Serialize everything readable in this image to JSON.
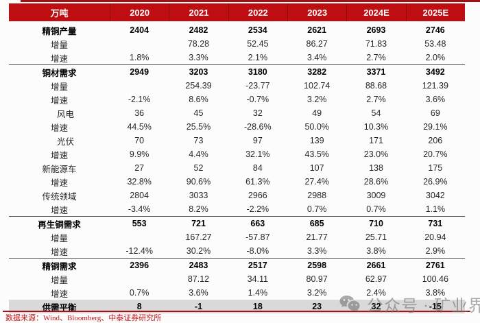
{
  "chart_data": {
    "type": "table",
    "title": "",
    "unit_label": "万吨",
    "columns": [
      "2020",
      "2021",
      "2022",
      "2023",
      "2024E",
      "2025E"
    ],
    "rows": [
      {
        "label": "精铜产量",
        "bold": true,
        "indent": false,
        "sep_below": false,
        "highlight": false,
        "values": [
          "2404",
          "2482",
          "2534",
          "2621",
          "2693",
          "2746"
        ]
      },
      {
        "label": "增量",
        "bold": false,
        "indent": false,
        "sep_below": false,
        "highlight": false,
        "values": [
          "",
          "78.28",
          "52.45",
          "86.27",
          "71.83",
          "53.48"
        ]
      },
      {
        "label": "增速",
        "bold": false,
        "indent": false,
        "sep_below": true,
        "highlight": false,
        "values": [
          "1.8%",
          "3.3%",
          "2.1%",
          "3.4%",
          "2.7%",
          "2.0%"
        ]
      },
      {
        "label": "铜材需求",
        "bold": true,
        "indent": false,
        "sep_below": false,
        "highlight": false,
        "values": [
          "2949",
          "3203",
          "3180",
          "3282",
          "3371",
          "3492"
        ]
      },
      {
        "label": "增量",
        "bold": false,
        "indent": false,
        "sep_below": false,
        "highlight": false,
        "values": [
          "",
          "254.39",
          "-23.77",
          "102.74",
          "88.68",
          "121.39"
        ]
      },
      {
        "label": "增速",
        "bold": false,
        "indent": false,
        "sep_below": false,
        "highlight": false,
        "values": [
          "-2.1%",
          "8.6%",
          "-0.7%",
          "3.2%",
          "2.7%",
          "3.6%"
        ]
      },
      {
        "label": "风电",
        "bold": false,
        "indent": true,
        "sep_below": false,
        "highlight": false,
        "values": [
          "36",
          "45",
          "32",
          "49",
          "54",
          "69"
        ]
      },
      {
        "label": "增速",
        "bold": false,
        "indent": false,
        "sep_below": false,
        "highlight": false,
        "values": [
          "44.5%",
          "25.5%",
          "-28.6%",
          "50.0%",
          "10.3%",
          "29.1%"
        ]
      },
      {
        "label": "光伏",
        "bold": false,
        "indent": true,
        "sep_below": false,
        "highlight": false,
        "values": [
          "70",
          "73",
          "97",
          "139",
          "171",
          "206"
        ]
      },
      {
        "label": "增速",
        "bold": false,
        "indent": false,
        "sep_below": false,
        "highlight": false,
        "values": [
          "9.9%",
          "4.4%",
          "32.1%",
          "43.5%",
          "23.0%",
          "20.7%"
        ]
      },
      {
        "label": "新能源车",
        "bold": false,
        "indent": false,
        "sep_below": false,
        "highlight": false,
        "values": [
          "27",
          "52",
          "84",
          "107",
          "138",
          "175"
        ]
      },
      {
        "label": "增速",
        "bold": false,
        "indent": false,
        "sep_below": false,
        "highlight": false,
        "values": [
          "32.8%",
          "90.6%",
          "61.3%",
          "27.4%",
          "28.6%",
          "26.9%"
        ]
      },
      {
        "label": "传统领域",
        "bold": false,
        "indent": false,
        "sep_below": false,
        "highlight": false,
        "values": [
          "2804",
          "3033",
          "2966",
          "2988",
          "3009",
          "3042"
        ]
      },
      {
        "label": "增速",
        "bold": false,
        "indent": false,
        "sep_below": true,
        "highlight": false,
        "values": [
          "-3.4%",
          "8.2%",
          "-2.2%",
          "0.7%",
          "0.7%",
          "1.1%"
        ]
      },
      {
        "label": "再生铜需求",
        "bold": true,
        "indent": false,
        "sep_below": false,
        "highlight": false,
        "values": [
          "553",
          "721",
          "663",
          "685",
          "710",
          "731"
        ]
      },
      {
        "label": "增量",
        "bold": false,
        "indent": false,
        "sep_below": false,
        "highlight": false,
        "values": [
          "",
          "167.27",
          "-57.87",
          "21.77",
          "25.71",
          "20.94"
        ]
      },
      {
        "label": "增速",
        "bold": false,
        "indent": false,
        "sep_below": true,
        "highlight": false,
        "values": [
          "-12.4%",
          "30.2%",
          "-8.0%",
          "3.3%",
          "3.8%",
          "2.9%"
        ]
      },
      {
        "label": "精铜需求",
        "bold": true,
        "indent": false,
        "sep_below": false,
        "highlight": false,
        "values": [
          "2396",
          "2483",
          "2517",
          "2598",
          "2661",
          "2761"
        ]
      },
      {
        "label": "增量",
        "bold": false,
        "indent": false,
        "sep_below": false,
        "highlight": false,
        "values": [
          "",
          "87.12",
          "34.11",
          "80.97",
          "62.97",
          "100.46"
        ]
      },
      {
        "label": "增速",
        "bold": false,
        "indent": false,
        "sep_below": false,
        "highlight": false,
        "values": [
          "0.7%",
          "3.6%",
          "1.4%",
          "3.2%",
          "2.4%",
          "3.8%"
        ]
      },
      {
        "label": "供需平衡",
        "bold": true,
        "indent": false,
        "sep_below": false,
        "highlight": true,
        "values": [
          "8",
          "-1",
          "18",
          "23",
          "32",
          "-15"
        ]
      }
    ],
    "source": "数据来源：Wind、Bloomberg、中泰证券研究所",
    "layout": {
      "grid": "off",
      "header_style": "red-band",
      "section_separators": "after rows 3, 14, 17",
      "total_row": "gray highlight"
    }
  },
  "watermark": {
    "icon": "wechat-icon",
    "text": "公众号 · 矿业界"
  },
  "colors": {
    "header_red": "#be0e12",
    "top_line_red": "#9e1115",
    "bottom_line_red": "#a31318",
    "total_row_gray": "#d9d9d9",
    "source_text_red": "#c0161c",
    "separator_gray": "#474747",
    "watermark_gray": "#737373"
  }
}
